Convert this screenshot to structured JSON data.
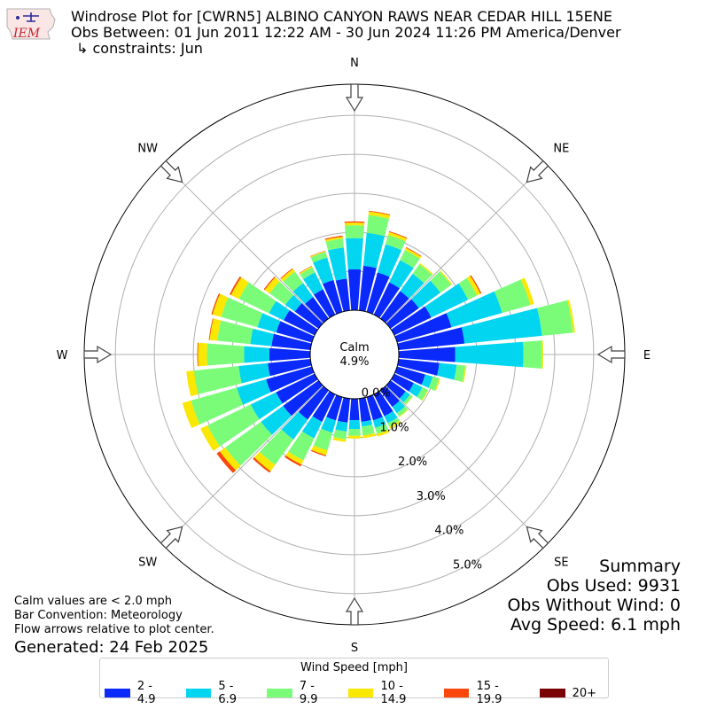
{
  "header": {
    "title_line1": "Windrose Plot for [CWRN5] ALBINO CANYON RAWS NEAR CEDAR HILL 15ENE",
    "title_line2": "Obs Between: 01 Jun 2011 12:22 AM - 30 Jun 2024 11:26 PM America/Denver",
    "title_line3": "↳ constraints: Jun",
    "logo_text": "IEM"
  },
  "notes": {
    "line1": "Calm values are < 2.0 mph",
    "line2": "Bar Convention: Meteorology",
    "line3": "Flow arrows relative to plot center.",
    "generated": "Generated: 24 Feb 2025"
  },
  "summary": {
    "title": "Summary",
    "obs_used": "Obs Used: 9931",
    "obs_without_wind": "Obs Without Wind: 0",
    "avg_speed": "Avg Speed: 6.1 mph"
  },
  "chart_data": {
    "type": "windrose",
    "calm_label": "Calm",
    "calm_value": "4.9%",
    "radial_ticks": [
      "0.0%",
      "1.0%",
      "2.0%",
      "3.0%",
      "4.0%",
      "5.0%"
    ],
    "radial_max": 5.8,
    "directions": [
      {
        "label": "N",
        "deg": 0
      },
      {
        "label": "NE",
        "deg": 45
      },
      {
        "label": "E",
        "deg": 90
      },
      {
        "label": "SE",
        "deg": 135
      },
      {
        "label": "S",
        "deg": 180
      },
      {
        "label": "SW",
        "deg": 225
      },
      {
        "label": "W",
        "deg": 270
      },
      {
        "label": "NW",
        "deg": 315
      }
    ],
    "legend_title": "Wind Speed [mph]",
    "bins": [
      {
        "name": "2 - 4.9",
        "color": "#0a29fb"
      },
      {
        "name": "5 - 6.9",
        "color": "#02d5f0"
      },
      {
        "name": "7 - 9.9",
        "color": "#7bfc79"
      },
      {
        "name": "10 - 14.9",
        "color": "#fae702"
      },
      {
        "name": "15 - 19.9",
        "color": "#fb460c"
      },
      {
        "name": "20+",
        "color": "#7a0103"
      }
    ],
    "sectors_deg": [
      0,
      10,
      20,
      30,
      40,
      50,
      60,
      70,
      80,
      90,
      100,
      110,
      120,
      130,
      140,
      150,
      160,
      170,
      180,
      190,
      200,
      210,
      220,
      230,
      240,
      250,
      260,
      270,
      280,
      290,
      300,
      310,
      320,
      330,
      340,
      350
    ],
    "cumulative_pct": [
      [
        1.05,
        1.85,
        2.18,
        2.25,
        2.28,
        2.28
      ],
      [
        1.15,
        2.0,
        2.46,
        2.55,
        2.57,
        2.57
      ],
      [
        1.05,
        1.8,
        2.05,
        2.13,
        2.15,
        2.15
      ],
      [
        0.92,
        1.55,
        1.84,
        1.9,
        1.92,
        1.92
      ],
      [
        0.87,
        1.42,
        1.72,
        1.75,
        1.75,
        1.75
      ],
      [
        0.9,
        1.58,
        1.92,
        1.95,
        1.95,
        1.95
      ],
      [
        1.05,
        2.1,
        2.35,
        2.45,
        2.48,
        2.48
      ],
      [
        1.45,
        2.8,
        3.55,
        3.65,
        3.65,
        3.65
      ],
      [
        1.7,
        3.7,
        4.5,
        4.55,
        4.55,
        4.55
      ],
      [
        1.45,
        3.2,
        3.68,
        3.71,
        3.71,
        3.71
      ],
      [
        1.05,
        1.5,
        1.72,
        1.75,
        1.75,
        1.75
      ],
      [
        0.75,
        0.95,
        1.12,
        1.15,
        1.15,
        1.15
      ],
      [
        0.55,
        0.8,
        0.95,
        0.97,
        0.97,
        0.97
      ],
      [
        0.48,
        0.62,
        0.7,
        0.71,
        0.71,
        0.71
      ],
      [
        0.52,
        0.72,
        0.82,
        0.84,
        0.84,
        0.84
      ],
      [
        0.62,
        0.82,
        0.92,
        0.98,
        0.98,
        0.98
      ],
      [
        0.62,
        0.82,
        0.98,
        1.05,
        1.05,
        1.05
      ],
      [
        0.6,
        0.72,
        0.95,
        1.02,
        1.02,
        1.02
      ],
      [
        0.55,
        0.78,
        0.95,
        1.02,
        1.02,
        1.02
      ],
      [
        0.62,
        0.85,
        1.05,
        1.12,
        1.12,
        1.12
      ],
      [
        0.62,
        0.95,
        1.42,
        1.55,
        1.58,
        1.58
      ],
      [
        0.78,
        1.25,
        1.88,
        2.0,
        2.05,
        2.05
      ],
      [
        0.92,
        1.55,
        2.35,
        2.55,
        2.6,
        2.6
      ],
      [
        1.12,
        1.82,
        2.95,
        3.12,
        3.22,
        3.22
      ],
      [
        1.1,
        1.82,
        3.05,
        3.25,
        3.25,
        3.25
      ],
      [
        1.22,
        2.0,
        3.22,
        3.45,
        3.45,
        3.45
      ],
      [
        1.1,
        1.85,
        3.0,
        3.2,
        3.2,
        3.2
      ],
      [
        1.05,
        1.7,
        2.65,
        2.88,
        2.9,
        2.9
      ],
      [
        1.0,
        1.55,
        2.4,
        2.6,
        2.62,
        2.62
      ],
      [
        0.95,
        1.45,
        2.42,
        2.65,
        2.68,
        2.68
      ],
      [
        0.88,
        1.3,
        2.15,
        2.38,
        2.42,
        2.42
      ],
      [
        0.75,
        1.05,
        1.55,
        1.7,
        1.73,
        1.73
      ],
      [
        0.68,
        1.12,
        1.48,
        1.57,
        1.59,
        1.59
      ],
      [
        0.72,
        1.2,
        1.35,
        1.38,
        1.39,
        1.39
      ],
      [
        0.85,
        1.45,
        1.6,
        1.62,
        1.63,
        1.63
      ],
      [
        0.82,
        1.62,
        1.85,
        1.9,
        1.93,
        1.93
      ]
    ]
  }
}
